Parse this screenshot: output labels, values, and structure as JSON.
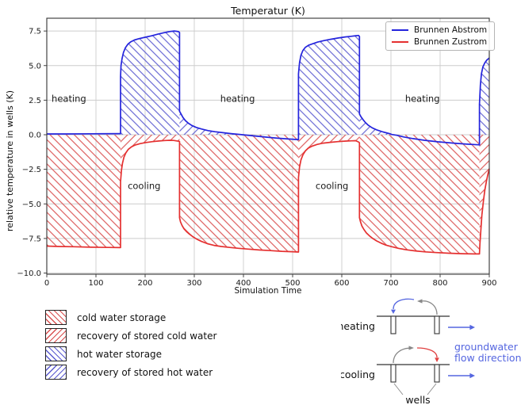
{
  "figure": {
    "title": "Temperatur (K)",
    "xlabel": "Simulation Time",
    "ylabel": "relative temperature in wells (K)"
  },
  "chart_data": {
    "type": "line",
    "title": "Temperatur (K)",
    "xlabel": "Simulation Time",
    "ylabel": "relative temperature in wells (K)",
    "xlim": [
      0,
      900
    ],
    "ylim": [
      -10,
      8.4
    ],
    "x_ticks": [
      0,
      100,
      200,
      300,
      400,
      500,
      600,
      700,
      800,
      900
    ],
    "y_ticks": [
      7.5,
      5.0,
      2.5,
      0.0,
      -2.5,
      -5.0,
      -7.5,
      -10.0
    ],
    "grid": true,
    "legend_position": "upper right",
    "series": [
      {
        "name": "Brunnen Abstrom",
        "color": "#2424dd",
        "points": [
          [
            0,
            0.06
          ],
          [
            40,
            0.06
          ],
          [
            90,
            0.07
          ],
          [
            148,
            0.08
          ],
          [
            150,
            0.08
          ],
          [
            150,
            4.2
          ],
          [
            151,
            5.0
          ],
          [
            153,
            5.5
          ],
          [
            156,
            5.95
          ],
          [
            160,
            6.3
          ],
          [
            165,
            6.55
          ],
          [
            171,
            6.72
          ],
          [
            178,
            6.85
          ],
          [
            188,
            6.95
          ],
          [
            200,
            7.05
          ],
          [
            213,
            7.15
          ],
          [
            226,
            7.27
          ],
          [
            239,
            7.38
          ],
          [
            250,
            7.46
          ],
          [
            259,
            7.5
          ],
          [
            264,
            7.48
          ],
          [
            268,
            7.45
          ],
          [
            270,
            7.4
          ],
          [
            270,
            1.7
          ],
          [
            273,
            1.5
          ],
          [
            277,
            1.25
          ],
          [
            282,
            1.02
          ],
          [
            288,
            0.83
          ],
          [
            295,
            0.67
          ],
          [
            304,
            0.53
          ],
          [
            315,
            0.41
          ],
          [
            328,
            0.3
          ],
          [
            342,
            0.22
          ],
          [
            358,
            0.15
          ],
          [
            375,
            0.08
          ],
          [
            390,
            0.03
          ],
          [
            398,
            0.0
          ],
          [
            412,
            -0.05
          ],
          [
            428,
            -0.11
          ],
          [
            448,
            -0.18
          ],
          [
            470,
            -0.25
          ],
          [
            492,
            -0.31
          ],
          [
            512,
            -0.35
          ],
          [
            512,
            4.4
          ],
          [
            514,
            5.2
          ],
          [
            517,
            5.75
          ],
          [
            521,
            6.1
          ],
          [
            526,
            6.32
          ],
          [
            533,
            6.48
          ],
          [
            541,
            6.58
          ],
          [
            551,
            6.7
          ],
          [
            563,
            6.8
          ],
          [
            577,
            6.9
          ],
          [
            593,
            7.0
          ],
          [
            607,
            7.07
          ],
          [
            619,
            7.12
          ],
          [
            628,
            7.16
          ],
          [
            634,
            7.18
          ],
          [
            636,
            7.1
          ],
          [
            636,
            1.5
          ],
          [
            639,
            1.3
          ],
          [
            643,
            1.1
          ],
          [
            648,
            0.88
          ],
          [
            654,
            0.68
          ],
          [
            662,
            0.5
          ],
          [
            672,
            0.34
          ],
          [
            684,
            0.2
          ],
          [
            697,
            0.08
          ],
          [
            702,
            0.02
          ],
          [
            712,
            -0.04
          ],
          [
            726,
            -0.16
          ],
          [
            745,
            -0.28
          ],
          [
            768,
            -0.4
          ],
          [
            795,
            -0.51
          ],
          [
            825,
            -0.6
          ],
          [
            855,
            -0.68
          ],
          [
            878,
            -0.73
          ],
          [
            880,
            -0.74
          ],
          [
            880,
            2.2
          ],
          [
            882,
            3.6
          ],
          [
            884,
            4.4
          ],
          [
            887,
            4.9
          ],
          [
            891,
            5.2
          ],
          [
            895,
            5.4
          ],
          [
            900,
            5.55
          ]
        ]
      },
      {
        "name": "Brunnen Zustrom",
        "color": "#e53030",
        "points": [
          [
            0,
            -8.05
          ],
          [
            25,
            -8.08
          ],
          [
            55,
            -8.1
          ],
          [
            90,
            -8.13
          ],
          [
            125,
            -8.15
          ],
          [
            150,
            -8.16
          ],
          [
            150,
            -3.4
          ],
          [
            152,
            -2.55
          ],
          [
            154,
            -2.05
          ],
          [
            157,
            -1.62
          ],
          [
            161,
            -1.3
          ],
          [
            166,
            -1.05
          ],
          [
            172,
            -0.88
          ],
          [
            180,
            -0.74
          ],
          [
            190,
            -0.64
          ],
          [
            202,
            -0.56
          ],
          [
            215,
            -0.5
          ],
          [
            228,
            -0.45
          ],
          [
            240,
            -0.42
          ],
          [
            250,
            -0.4
          ],
          [
            258,
            -0.41
          ],
          [
            263,
            -0.44
          ],
          [
            268,
            -0.47
          ],
          [
            270,
            -0.5
          ],
          [
            270,
            -6.0
          ],
          [
            272,
            -6.3
          ],
          [
            275,
            -6.55
          ],
          [
            279,
            -6.8
          ],
          [
            284,
            -7.0
          ],
          [
            290,
            -7.18
          ],
          [
            297,
            -7.37
          ],
          [
            305,
            -7.55
          ],
          [
            315,
            -7.72
          ],
          [
            327,
            -7.88
          ],
          [
            340,
            -8.0
          ],
          [
            355,
            -8.08
          ],
          [
            372,
            -8.15
          ],
          [
            390,
            -8.21
          ],
          [
            410,
            -8.27
          ],
          [
            432,
            -8.33
          ],
          [
            455,
            -8.38
          ],
          [
            478,
            -8.43
          ],
          [
            500,
            -8.46
          ],
          [
            512,
            -8.48
          ],
          [
            512,
            -3.1
          ],
          [
            514,
            -2.35
          ],
          [
            517,
            -1.82
          ],
          [
            521,
            -1.45
          ],
          [
            526,
            -1.17
          ],
          [
            532,
            -0.97
          ],
          [
            540,
            -0.82
          ],
          [
            550,
            -0.7
          ],
          [
            562,
            -0.61
          ],
          [
            576,
            -0.55
          ],
          [
            592,
            -0.5
          ],
          [
            608,
            -0.46
          ],
          [
            620,
            -0.44
          ],
          [
            628,
            -0.43
          ],
          [
            634,
            -0.52
          ],
          [
            636,
            -0.58
          ],
          [
            636,
            -6.0
          ],
          [
            638,
            -6.3
          ],
          [
            641,
            -6.6
          ],
          [
            645,
            -6.85
          ],
          [
            650,
            -7.1
          ],
          [
            656,
            -7.3
          ],
          [
            663,
            -7.5
          ],
          [
            671,
            -7.68
          ],
          [
            680,
            -7.84
          ],
          [
            690,
            -7.98
          ],
          [
            702,
            -8.1
          ],
          [
            716,
            -8.22
          ],
          [
            732,
            -8.32
          ],
          [
            750,
            -8.4
          ],
          [
            770,
            -8.47
          ],
          [
            793,
            -8.52
          ],
          [
            818,
            -8.57
          ],
          [
            845,
            -8.6
          ],
          [
            870,
            -8.62
          ],
          [
            880,
            -8.62
          ],
          [
            881,
            -7.9
          ],
          [
            883,
            -6.8
          ],
          [
            885,
            -5.8
          ],
          [
            888,
            -4.8
          ],
          [
            891,
            -4.0
          ],
          [
            894,
            -3.4
          ],
          [
            897,
            -2.9
          ],
          [
            900,
            -2.45
          ]
        ]
      }
    ],
    "regions": [
      {
        "series": 1,
        "from": 0,
        "to": 150,
        "hatch": "\\",
        "meaning": "cold water storage"
      },
      {
        "series": 1,
        "from": 150,
        "to": 270,
        "hatch": "/",
        "meaning": "recovery of stored cold water"
      },
      {
        "series": 0,
        "from": 150,
        "to": 270,
        "hatch": "\\",
        "meaning": "hot water storage"
      },
      {
        "series": 1,
        "from": 270,
        "to": 512,
        "hatch": "\\",
        "meaning": "cold water storage"
      },
      {
        "series": 0,
        "from": 270,
        "to": 398,
        "hatch": "/",
        "meaning": "recovery of stored hot water"
      },
      {
        "series": 1,
        "from": 512,
        "to": 636,
        "hatch": "/",
        "meaning": "recovery of stored cold water"
      },
      {
        "series": 0,
        "from": 512,
        "to": 636,
        "hatch": "\\",
        "meaning": "hot water storage"
      },
      {
        "series": 1,
        "from": 636,
        "to": 880,
        "hatch": "\\",
        "meaning": "cold water storage"
      },
      {
        "series": 0,
        "from": 636,
        "to": 702,
        "hatch": "/",
        "meaning": "recovery of stored hot water"
      },
      {
        "series": 1,
        "from": 880,
        "to": 900,
        "hatch": "/",
        "meaning": "recovery of stored cold water"
      },
      {
        "series": 0,
        "from": 880,
        "to": 900,
        "hatch": "\\",
        "meaning": "hot water storage"
      }
    ],
    "annotations": [
      {
        "text": "heating",
        "x": 45,
        "y": 2.6
      },
      {
        "text": "heating",
        "x": 388,
        "y": 2.6
      },
      {
        "text": "heating",
        "x": 764,
        "y": 2.6
      },
      {
        "text": "cooling",
        "x": 198,
        "y": -3.7
      },
      {
        "text": "cooling",
        "x": 580,
        "y": -3.7
      }
    ]
  },
  "bottom_legend": {
    "items": [
      {
        "label": "cold water storage",
        "color": "red",
        "hatch": "\\"
      },
      {
        "label": "recovery of stored cold water",
        "color": "red",
        "hatch": "/"
      },
      {
        "label": "hot water storage",
        "color": "blue",
        "hatch": "\\"
      },
      {
        "label": "recovery of stored hot water",
        "color": "blue",
        "hatch": "/"
      }
    ]
  },
  "diagram": {
    "heating_label": "heating",
    "cooling_label": "cooling",
    "wells_label": "wells",
    "flow_label_line1": "groundwater",
    "flow_label_line2": "flow direction"
  },
  "colors": {
    "line_blue": "#2424dd",
    "line_red": "#e53030",
    "hatch_blue": "#5b5bd0",
    "hatch_red": "#d94f4f",
    "grid": "#cccccc",
    "spine": "#333333",
    "accent_flow_blue": "#5566e0",
    "arrow_gray": "#888888"
  }
}
